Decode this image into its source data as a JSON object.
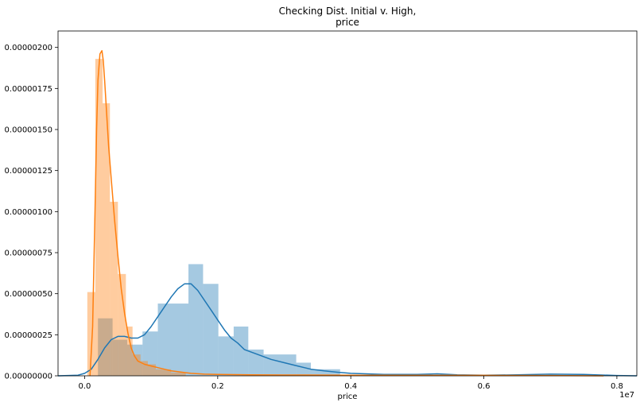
{
  "chart_data": {
    "type": "histogram",
    "title": [
      "Checking Dist. Initial v. High,",
      "price"
    ],
    "xlabel": "price",
    "ylabel": "",
    "x_offset_text": "1e7",
    "xlim": [
      -0.04,
      0.83
    ],
    "ylim": [
      0,
      2.1e-06
    ],
    "x_ticks": [
      0.0,
      0.2,
      0.4,
      0.6,
      0.8
    ],
    "x_tick_labels": [
      "0.0",
      "0.2",
      "0.4",
      "0.6",
      "0.8"
    ],
    "y_ticks": [
      0,
      2.5e-07,
      5e-07,
      7.5e-07,
      1e-06,
      1.25e-06,
      1.5e-06,
      1.75e-06,
      2e-06
    ],
    "y_tick_labels": [
      "0.00000000",
      "0.00000025",
      "0.00000050",
      "0.00000075",
      "0.00000100",
      "0.00000125",
      "0.00000150",
      "0.00000175",
      "0.00000200"
    ],
    "grid": false,
    "series": [
      {
        "color": "#1f77b4",
        "bar_alpha": 0.4,
        "bins": [
          {
            "x0": 0.02,
            "x1": 0.042,
            "value": 3.5e-07
          },
          {
            "x0": 0.042,
            "x1": 0.064,
            "value": 2.2e-07
          },
          {
            "x0": 0.064,
            "x1": 0.087,
            "value": 1.9e-07
          },
          {
            "x0": 0.087,
            "x1": 0.11,
            "value": 2.7e-07
          },
          {
            "x0": 0.11,
            "x1": 0.156,
            "value": 4.4e-07
          },
          {
            "x0": 0.156,
            "x1": 0.178,
            "value": 6.8e-07
          },
          {
            "x0": 0.178,
            "x1": 0.201,
            "value": 5.6e-07
          },
          {
            "x0": 0.201,
            "x1": 0.224,
            "value": 2.4e-07
          },
          {
            "x0": 0.224,
            "x1": 0.246,
            "value": 3e-07
          },
          {
            "x0": 0.246,
            "x1": 0.269,
            "value": 1.6e-07
          },
          {
            "x0": 0.269,
            "x1": 0.318,
            "value": 1.3e-07
          },
          {
            "x0": 0.318,
            "x1": 0.34,
            "value": 8e-08
          },
          {
            "x0": 0.34,
            "x1": 0.384,
            "value": 4e-08
          }
        ],
        "kde": {
          "x": [
            -0.04,
            -0.01,
            0.0,
            0.01,
            0.02,
            0.03,
            0.04,
            0.05,
            0.06,
            0.07,
            0.08,
            0.09,
            0.1,
            0.11,
            0.12,
            0.13,
            0.14,
            0.15,
            0.16,
            0.17,
            0.18,
            0.19,
            0.2,
            0.21,
            0.22,
            0.23,
            0.24,
            0.26,
            0.28,
            0.3,
            0.32,
            0.34,
            0.36,
            0.38,
            0.4,
            0.45,
            0.5,
            0.53,
            0.56,
            0.6,
            0.65,
            0.7,
            0.75,
            0.8,
            0.83
          ],
          "y": [
            0.0,
            4e-09,
            1.5e-08,
            4e-08,
            1e-07,
            1.7e-07,
            2.2e-07,
            2.4e-07,
            2.4e-07,
            2.3e-07,
            2.3e-07,
            2.5e-07,
            3e-07,
            3.6e-07,
            4.2e-07,
            4.8e-07,
            5.3e-07,
            5.6e-07,
            5.6e-07,
            5.2e-07,
            4.6e-07,
            4e-07,
            3.4e-07,
            2.8e-07,
            2.3e-07,
            2e-07,
            1.6e-07,
            1.3e-07,
            1e-07,
            8e-08,
            6e-08,
            4e-08,
            3e-08,
            2.2e-08,
            1.5e-08,
            8e-09,
            8e-09,
            1.2e-08,
            6e-09,
            4e-09,
            6e-09,
            1e-08,
            8e-09,
            2e-09,
            0.0
          ]
        }
      },
      {
        "color": "#ff7f0e",
        "bar_alpha": 0.4,
        "bins": [
          {
            "x0": 0.004,
            "x1": 0.016,
            "value": 5.1e-07
          },
          {
            "x0": 0.016,
            "x1": 0.027,
            "value": 1.93e-06
          },
          {
            "x0": 0.027,
            "x1": 0.038,
            "value": 1.66e-06
          },
          {
            "x0": 0.038,
            "x1": 0.05,
            "value": 1.06e-06
          },
          {
            "x0": 0.05,
            "x1": 0.062,
            "value": 6.2e-07
          },
          {
            "x0": 0.062,
            "x1": 0.072,
            "value": 3e-07
          },
          {
            "x0": 0.072,
            "x1": 0.084,
            "value": 1.3e-07
          },
          {
            "x0": 0.084,
            "x1": 0.095,
            "value": 9e-08
          },
          {
            "x0": 0.095,
            "x1": 0.107,
            "value": 7e-08
          },
          {
            "x0": 0.107,
            "x1": 0.13,
            "value": 4e-08
          },
          {
            "x0": 0.13,
            "x1": 0.152,
            "value": 2e-08
          }
        ],
        "kde": {
          "x": [
            0.008,
            0.012,
            0.016,
            0.018,
            0.02,
            0.023,
            0.026,
            0.028,
            0.03,
            0.033,
            0.036,
            0.04,
            0.045,
            0.05,
            0.055,
            0.06,
            0.065,
            0.07,
            0.075,
            0.08,
            0.09,
            0.1,
            0.11,
            0.12,
            0.13,
            0.14,
            0.15,
            0.16,
            0.18,
            0.2,
            0.25,
            0.3,
            0.4,
            0.5,
            0.6,
            0.7,
            0.78
          ],
          "y": [
            0.0,
            3e-07,
            1.1e-06,
            1.5e-06,
            1.8e-06,
            1.96e-06,
            1.98e-06,
            1.92e-06,
            1.8e-06,
            1.6e-06,
            1.4e-06,
            1.2e-06,
            9.5e-07,
            7.3e-07,
            5.3e-07,
            3.8e-07,
            2.6e-07,
            1.7e-07,
            1.2e-07,
            9e-08,
            7e-08,
            6e-08,
            5e-08,
            4e-08,
            3e-08,
            2.5e-08,
            2e-08,
            1.5e-08,
            1e-08,
            8e-09,
            6e-09,
            5e-09,
            4e-09,
            3e-09,
            3e-09,
            2e-09,
            0.0
          ]
        }
      }
    ]
  }
}
